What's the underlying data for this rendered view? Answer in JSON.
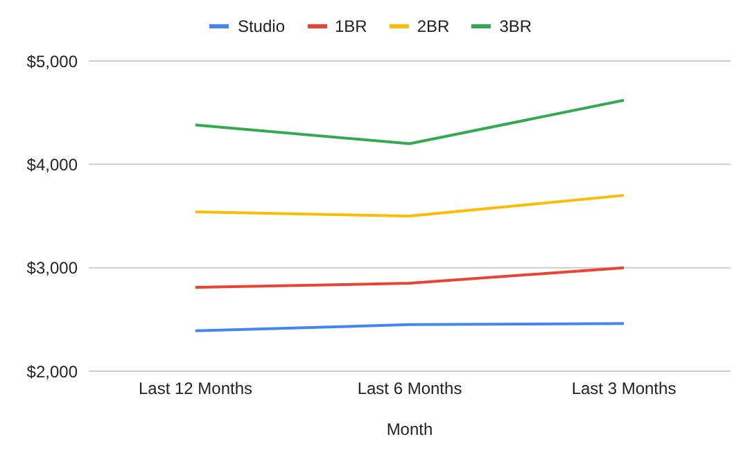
{
  "chart_data": {
    "type": "line",
    "xlabel": "Month",
    "categories": [
      "Last 12 Months",
      "Last 6 Months",
      "Last 3 Months"
    ],
    "series": [
      {
        "name": "Studio",
        "color": "#4285f4",
        "values": [
          2390,
          2450,
          2460
        ]
      },
      {
        "name": "1BR",
        "color": "#ea4335",
        "values": [
          2810,
          2850,
          3000
        ]
      },
      {
        "name": "2BR",
        "color": "#fbbc04",
        "values": [
          3540,
          3500,
          3700
        ]
      },
      {
        "name": "3BR",
        "color": "#34a853",
        "values": [
          4380,
          4200,
          4620
        ]
      }
    ],
    "ylim": [
      2000,
      5000
    ],
    "yticks": [
      {
        "value": 2000,
        "label": "$2,000"
      },
      {
        "value": 3000,
        "label": "$3,000"
      },
      {
        "value": 4000,
        "label": "$4,000"
      },
      {
        "value": 5000,
        "label": "$5,000"
      }
    ],
    "grid": "y",
    "legend": "top",
    "marker": "none",
    "line_style": "solid"
  }
}
